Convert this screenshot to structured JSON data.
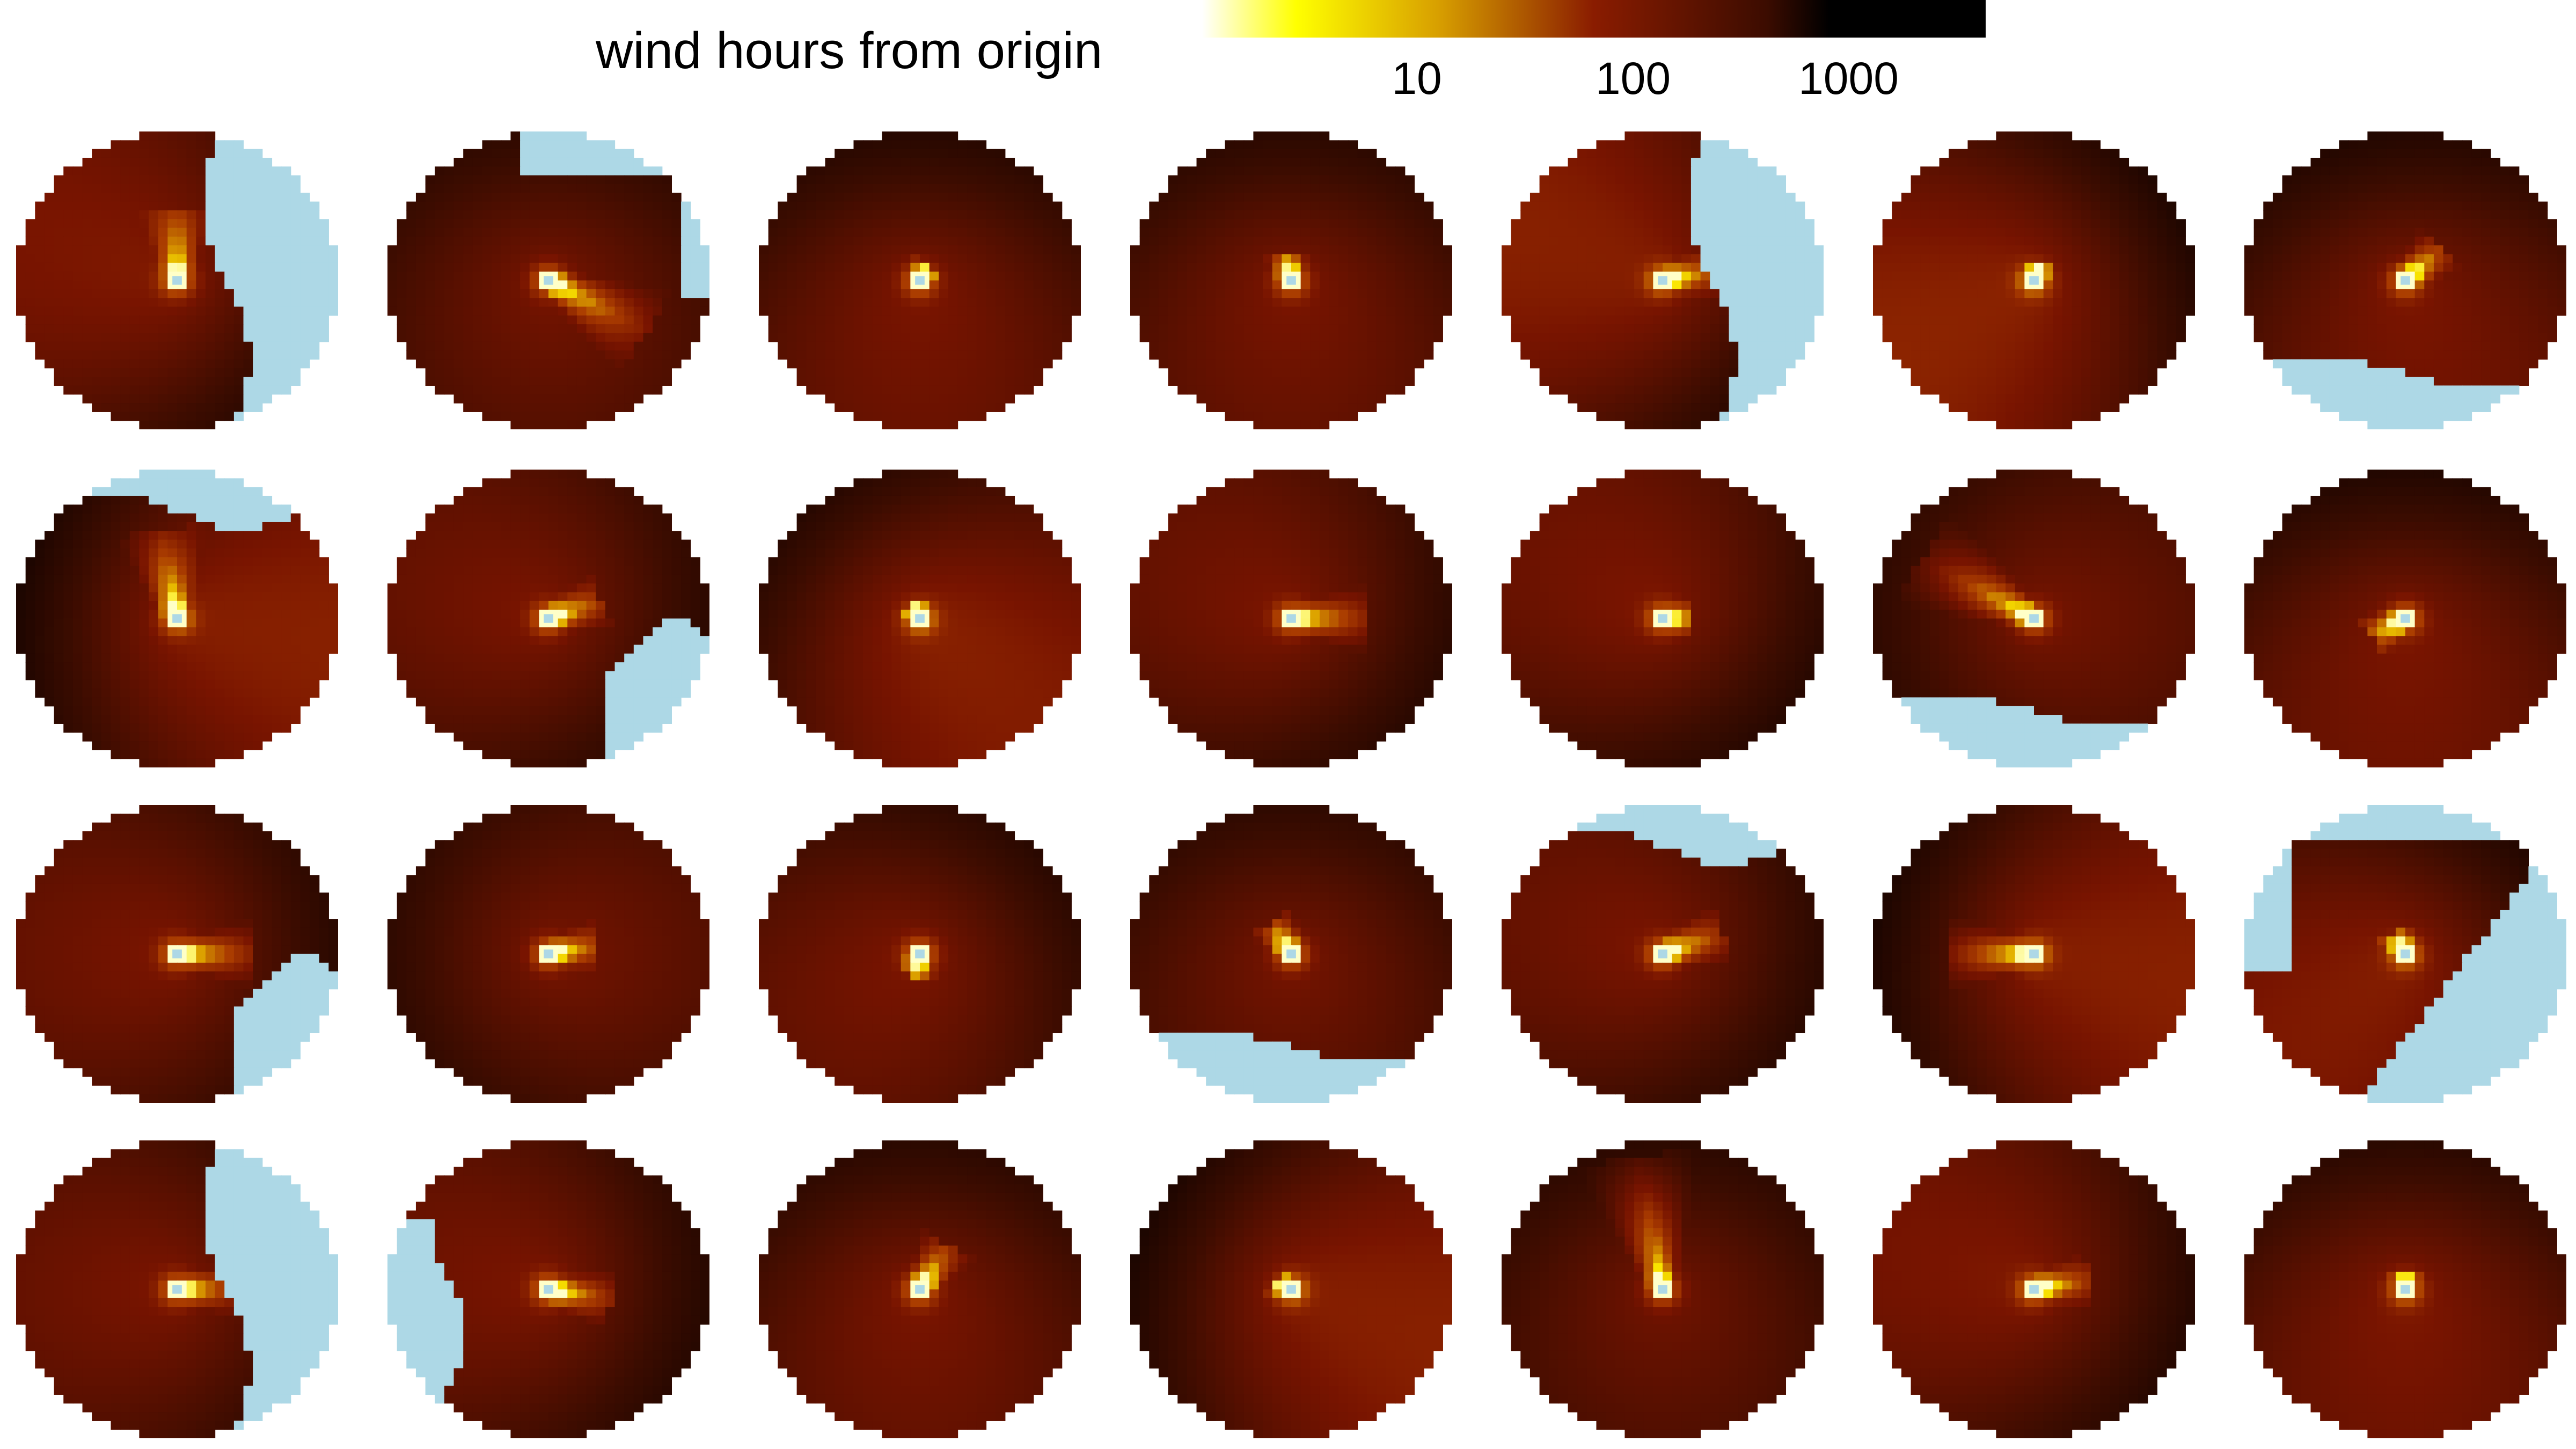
{
  "chart_data": {
    "type": "heatmap",
    "title": "wind hours from origin",
    "colorbar": {
      "scale": "log",
      "ticks": [
        10,
        100,
        1000
      ],
      "tick_labels": [
        "10",
        "100",
        "1000"
      ],
      "range": [
        1,
        10000
      ],
      "colors": [
        "#ffffff",
        "#ffff00",
        "#d8a000",
        "#8a1c00",
        "#3c0c00",
        "#000000"
      ]
    },
    "water_color": "#add8e6",
    "layout": {
      "rows": 4,
      "cols": 7
    },
    "panels": [
      {
        "row": 0,
        "col": 0,
        "hot_dir": -90,
        "hot_len": 0.5,
        "base": 0.25,
        "grad": 0.45,
        "grad_dir": 200,
        "water": "right"
      },
      {
        "row": 0,
        "col": 1,
        "hot_dir": 30,
        "hot_len": 0.7,
        "base": 0.35,
        "grad": 0.2,
        "grad_dir": 90,
        "water": "top-right"
      },
      {
        "row": 0,
        "col": 2,
        "hot_dir": -60,
        "hot_len": 0.12,
        "base": 0.3,
        "grad": 0.35,
        "grad_dir": 90,
        "water": "none"
      },
      {
        "row": 0,
        "col": 3,
        "hot_dir": -100,
        "hot_len": 0.18,
        "base": 0.3,
        "grad": 0.3,
        "grad_dir": 90,
        "water": "none"
      },
      {
        "row": 0,
        "col": 4,
        "hot_dir": -10,
        "hot_len": 0.35,
        "base": 0.2,
        "grad": 0.55,
        "grad_dir": 200,
        "water": "right"
      },
      {
        "row": 0,
        "col": 5,
        "hot_dir": -70,
        "hot_len": 0.12,
        "base": 0.15,
        "grad": 0.55,
        "grad_dir": 150,
        "water": "none"
      },
      {
        "row": 0,
        "col": 6,
        "hot_dir": -45,
        "hot_len": 0.3,
        "base": 0.3,
        "grad": 0.4,
        "grad_dir": 80,
        "water": "bottom"
      },
      {
        "row": 1,
        "col": 0,
        "hot_dir": -100,
        "hot_len": 0.6,
        "base": 0.2,
        "grad": 0.55,
        "grad_dir": 10,
        "water": "top"
      },
      {
        "row": 1,
        "col": 1,
        "hot_dir": -20,
        "hot_len": 0.35,
        "base": 0.3,
        "grad": 0.3,
        "grad_dir": 200,
        "water": "bottom-right"
      },
      {
        "row": 1,
        "col": 2,
        "hot_dir": -120,
        "hot_len": 0.1,
        "base": 0.15,
        "grad": 0.45,
        "grad_dir": 45,
        "water": "none"
      },
      {
        "row": 1,
        "col": 3,
        "hot_dir": 0,
        "hot_len": 0.5,
        "base": 0.3,
        "grad": 0.3,
        "grad_dir": 210,
        "water": "none"
      },
      {
        "row": 1,
        "col": 4,
        "hot_dir": 0,
        "hot_len": 0.2,
        "base": 0.28,
        "grad": 0.35,
        "grad_dir": 220,
        "water": "none"
      },
      {
        "row": 1,
        "col": 5,
        "hot_dir": -150,
        "hot_len": 0.8,
        "base": 0.35,
        "grad": 0.2,
        "grad_dir": 0,
        "water": "bottom"
      },
      {
        "row": 1,
        "col": 6,
        "hot_dir": 150,
        "hot_len": 0.25,
        "base": 0.3,
        "grad": 0.4,
        "grad_dir": 90,
        "water": "none"
      },
      {
        "row": 2,
        "col": 0,
        "hot_dir": 0,
        "hot_len": 0.5,
        "base": 0.3,
        "grad": 0.3,
        "grad_dir": 180,
        "water": "bottom-right"
      },
      {
        "row": 2,
        "col": 1,
        "hot_dir": -10,
        "hot_len": 0.3,
        "base": 0.35,
        "grad": 0.2,
        "grad_dir": 0,
        "water": "none"
      },
      {
        "row": 2,
        "col": 2,
        "hot_dir": 100,
        "hot_len": 0.15,
        "base": 0.3,
        "grad": 0.3,
        "grad_dir": 135,
        "water": "none"
      },
      {
        "row": 2,
        "col": 3,
        "hot_dir": -120,
        "hot_len": 0.25,
        "base": 0.35,
        "grad": 0.2,
        "grad_dir": 90,
        "water": "bottom"
      },
      {
        "row": 2,
        "col": 4,
        "hot_dir": -20,
        "hot_len": 0.4,
        "base": 0.3,
        "grad": 0.3,
        "grad_dir": 200,
        "water": "top"
      },
      {
        "row": 2,
        "col": 5,
        "hot_dir": 180,
        "hot_len": 0.55,
        "base": 0.2,
        "grad": 0.55,
        "grad_dir": 10,
        "water": "none"
      },
      {
        "row": 2,
        "col": 6,
        "hot_dir": -120,
        "hot_len": 0.15,
        "base": 0.2,
        "grad": 0.45,
        "grad_dir": 135,
        "water": "diagonal"
      },
      {
        "row": 3,
        "col": 0,
        "hot_dir": 0,
        "hot_len": 0.35,
        "base": 0.3,
        "grad": 0.3,
        "grad_dir": 180,
        "water": "right"
      },
      {
        "row": 3,
        "col": 1,
        "hot_dir": 10,
        "hot_len": 0.4,
        "base": 0.3,
        "grad": 0.35,
        "grad_dir": 190,
        "water": "left"
      },
      {
        "row": 3,
        "col": 2,
        "hot_dir": -60,
        "hot_len": 0.35,
        "base": 0.3,
        "grad": 0.3,
        "grad_dir": 90,
        "water": "none"
      },
      {
        "row": 3,
        "col": 3,
        "hot_dir": -150,
        "hot_len": 0.12,
        "base": 0.2,
        "grad": 0.55,
        "grad_dir": 20,
        "water": "none"
      },
      {
        "row": 3,
        "col": 4,
        "hot_dir": -100,
        "hot_len": 0.9,
        "base": 0.4,
        "grad": 0.2,
        "grad_dir": 90,
        "water": "none"
      },
      {
        "row": 3,
        "col": 5,
        "hot_dir": -10,
        "hot_len": 0.35,
        "base": 0.25,
        "grad": 0.4,
        "grad_dir": 200,
        "water": "none"
      },
      {
        "row": 3,
        "col": 6,
        "hot_dir": -90,
        "hot_len": 0.12,
        "base": 0.25,
        "grad": 0.35,
        "grad_dir": 90,
        "water": "none"
      }
    ]
  }
}
